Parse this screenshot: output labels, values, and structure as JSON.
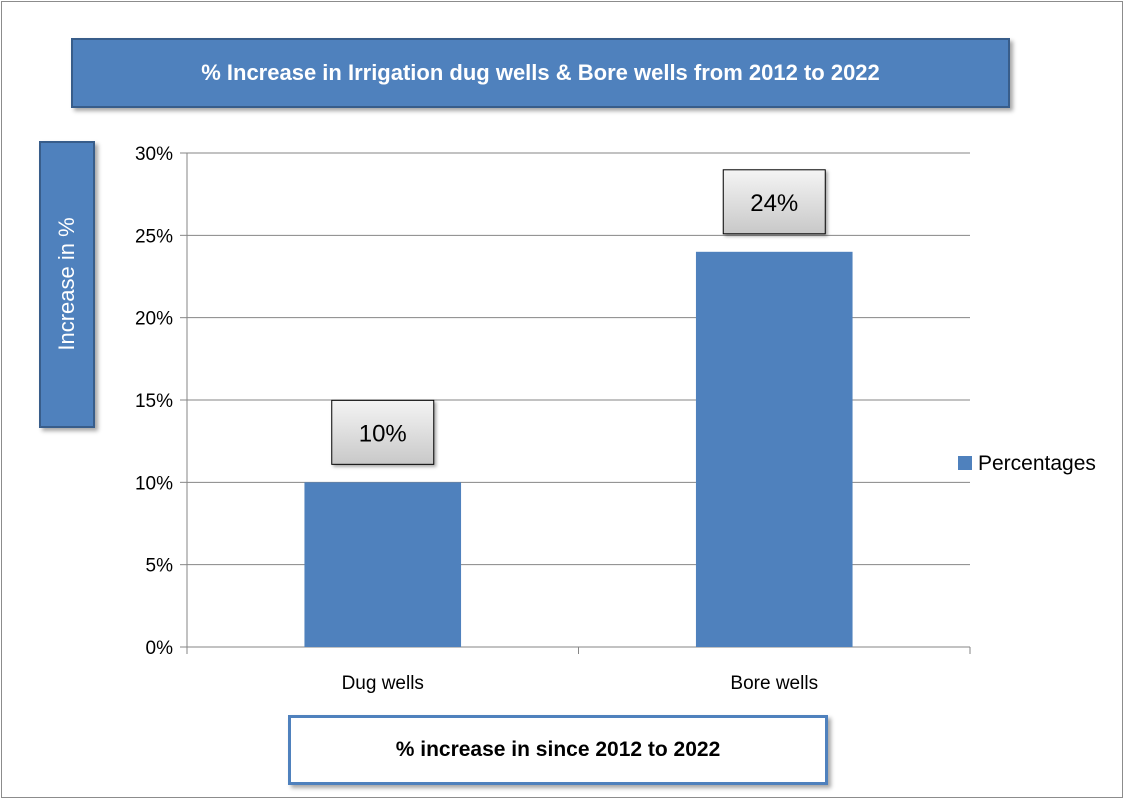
{
  "chart_data": {
    "type": "bar",
    "title": "% Increase in  Irrigation dug wells & Bore wells  from 2012 to 2022",
    "ylabel": "Increase in %",
    "xlabel": "% increase in  since  2012 to 2022",
    "categories": [
      "Dug wells",
      "Bore wells"
    ],
    "series": [
      {
        "name": "Percentages",
        "values": [
          10,
          24
        ],
        "color": "#4f81bd"
      }
    ],
    "data_labels": [
      "10%",
      "24%"
    ],
    "y_ticks": [
      0,
      5,
      10,
      15,
      20,
      25,
      30
    ],
    "y_tick_labels": [
      "0%",
      "5%",
      "10%",
      "15%",
      "20%",
      "25%",
      "30%"
    ],
    "ylim": [
      0,
      30
    ],
    "grid": true,
    "legend_position": "right"
  }
}
